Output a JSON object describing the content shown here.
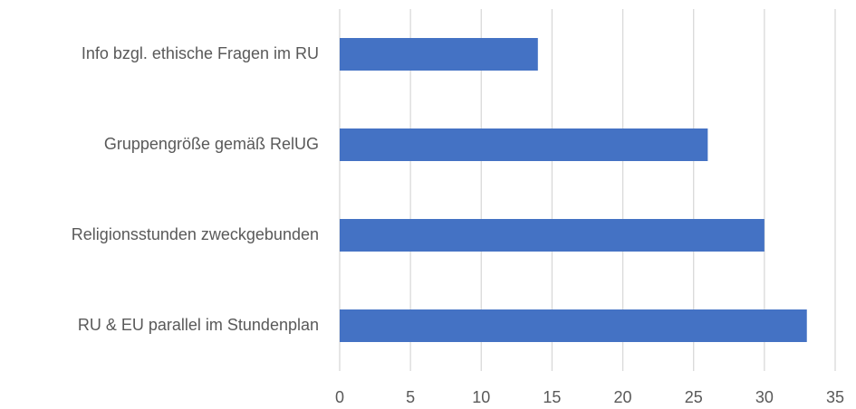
{
  "chart_data": {
    "type": "barh",
    "categories": [
      "Info bzgl. ethische Fragen im RU",
      "Gruppengröße gemäß RelUG",
      "Religionsstunden zweckgebunden",
      "RU & EU parallel im Stundenplan"
    ],
    "values": [
      14,
      26,
      30,
      33
    ],
    "color": "#4472c4",
    "xlim": [
      0,
      35
    ],
    "xticks": [
      0,
      5,
      10,
      15,
      20,
      25,
      30,
      35
    ],
    "grid": true
  }
}
